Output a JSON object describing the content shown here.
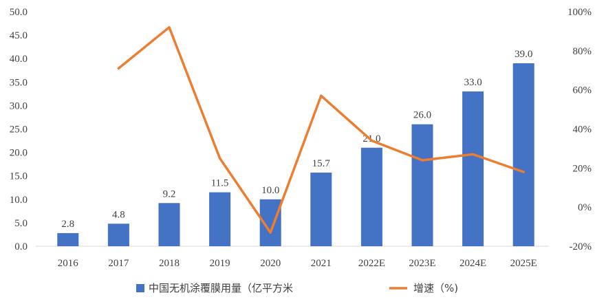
{
  "chart_data": {
    "type": "bar",
    "categories": [
      "2016",
      "2017",
      "2018",
      "2019",
      "2020",
      "2021",
      "2022E",
      "2023E",
      "2024E",
      "2025E"
    ],
    "series": [
      {
        "name": "中国无机涂覆膜用量（亿平方米",
        "type": "bar",
        "axis": "left",
        "values": [
          2.8,
          4.8,
          9.2,
          11.5,
          10.0,
          15.7,
          21.0,
          26.0,
          33.0,
          39.0
        ],
        "labels": [
          "2.8",
          "4.8",
          "9.2",
          "11.5",
          "10.0",
          "15.7",
          "21.0",
          "26.0",
          "33.0",
          "39.0"
        ],
        "color": "#4472C4"
      },
      {
        "name": "增速（%)",
        "type": "line",
        "axis": "right",
        "values": [
          null,
          71,
          92,
          25,
          -13,
          57,
          34,
          24,
          27,
          18
        ],
        "color": "#ED7D31"
      }
    ],
    "y_left": {
      "lim": [
        0,
        50
      ],
      "ticks": [
        "0.0",
        "5.0",
        "10.0",
        "15.0",
        "20.0",
        "25.0",
        "30.0",
        "35.0",
        "40.0",
        "45.0",
        "50.0"
      ]
    },
    "y_right": {
      "lim": [
        -20,
        100
      ],
      "ticks": [
        "-20%",
        "0%",
        "20%",
        "40%",
        "60%",
        "80%",
        "100%"
      ]
    },
    "grid": false,
    "legend": "bottom"
  }
}
